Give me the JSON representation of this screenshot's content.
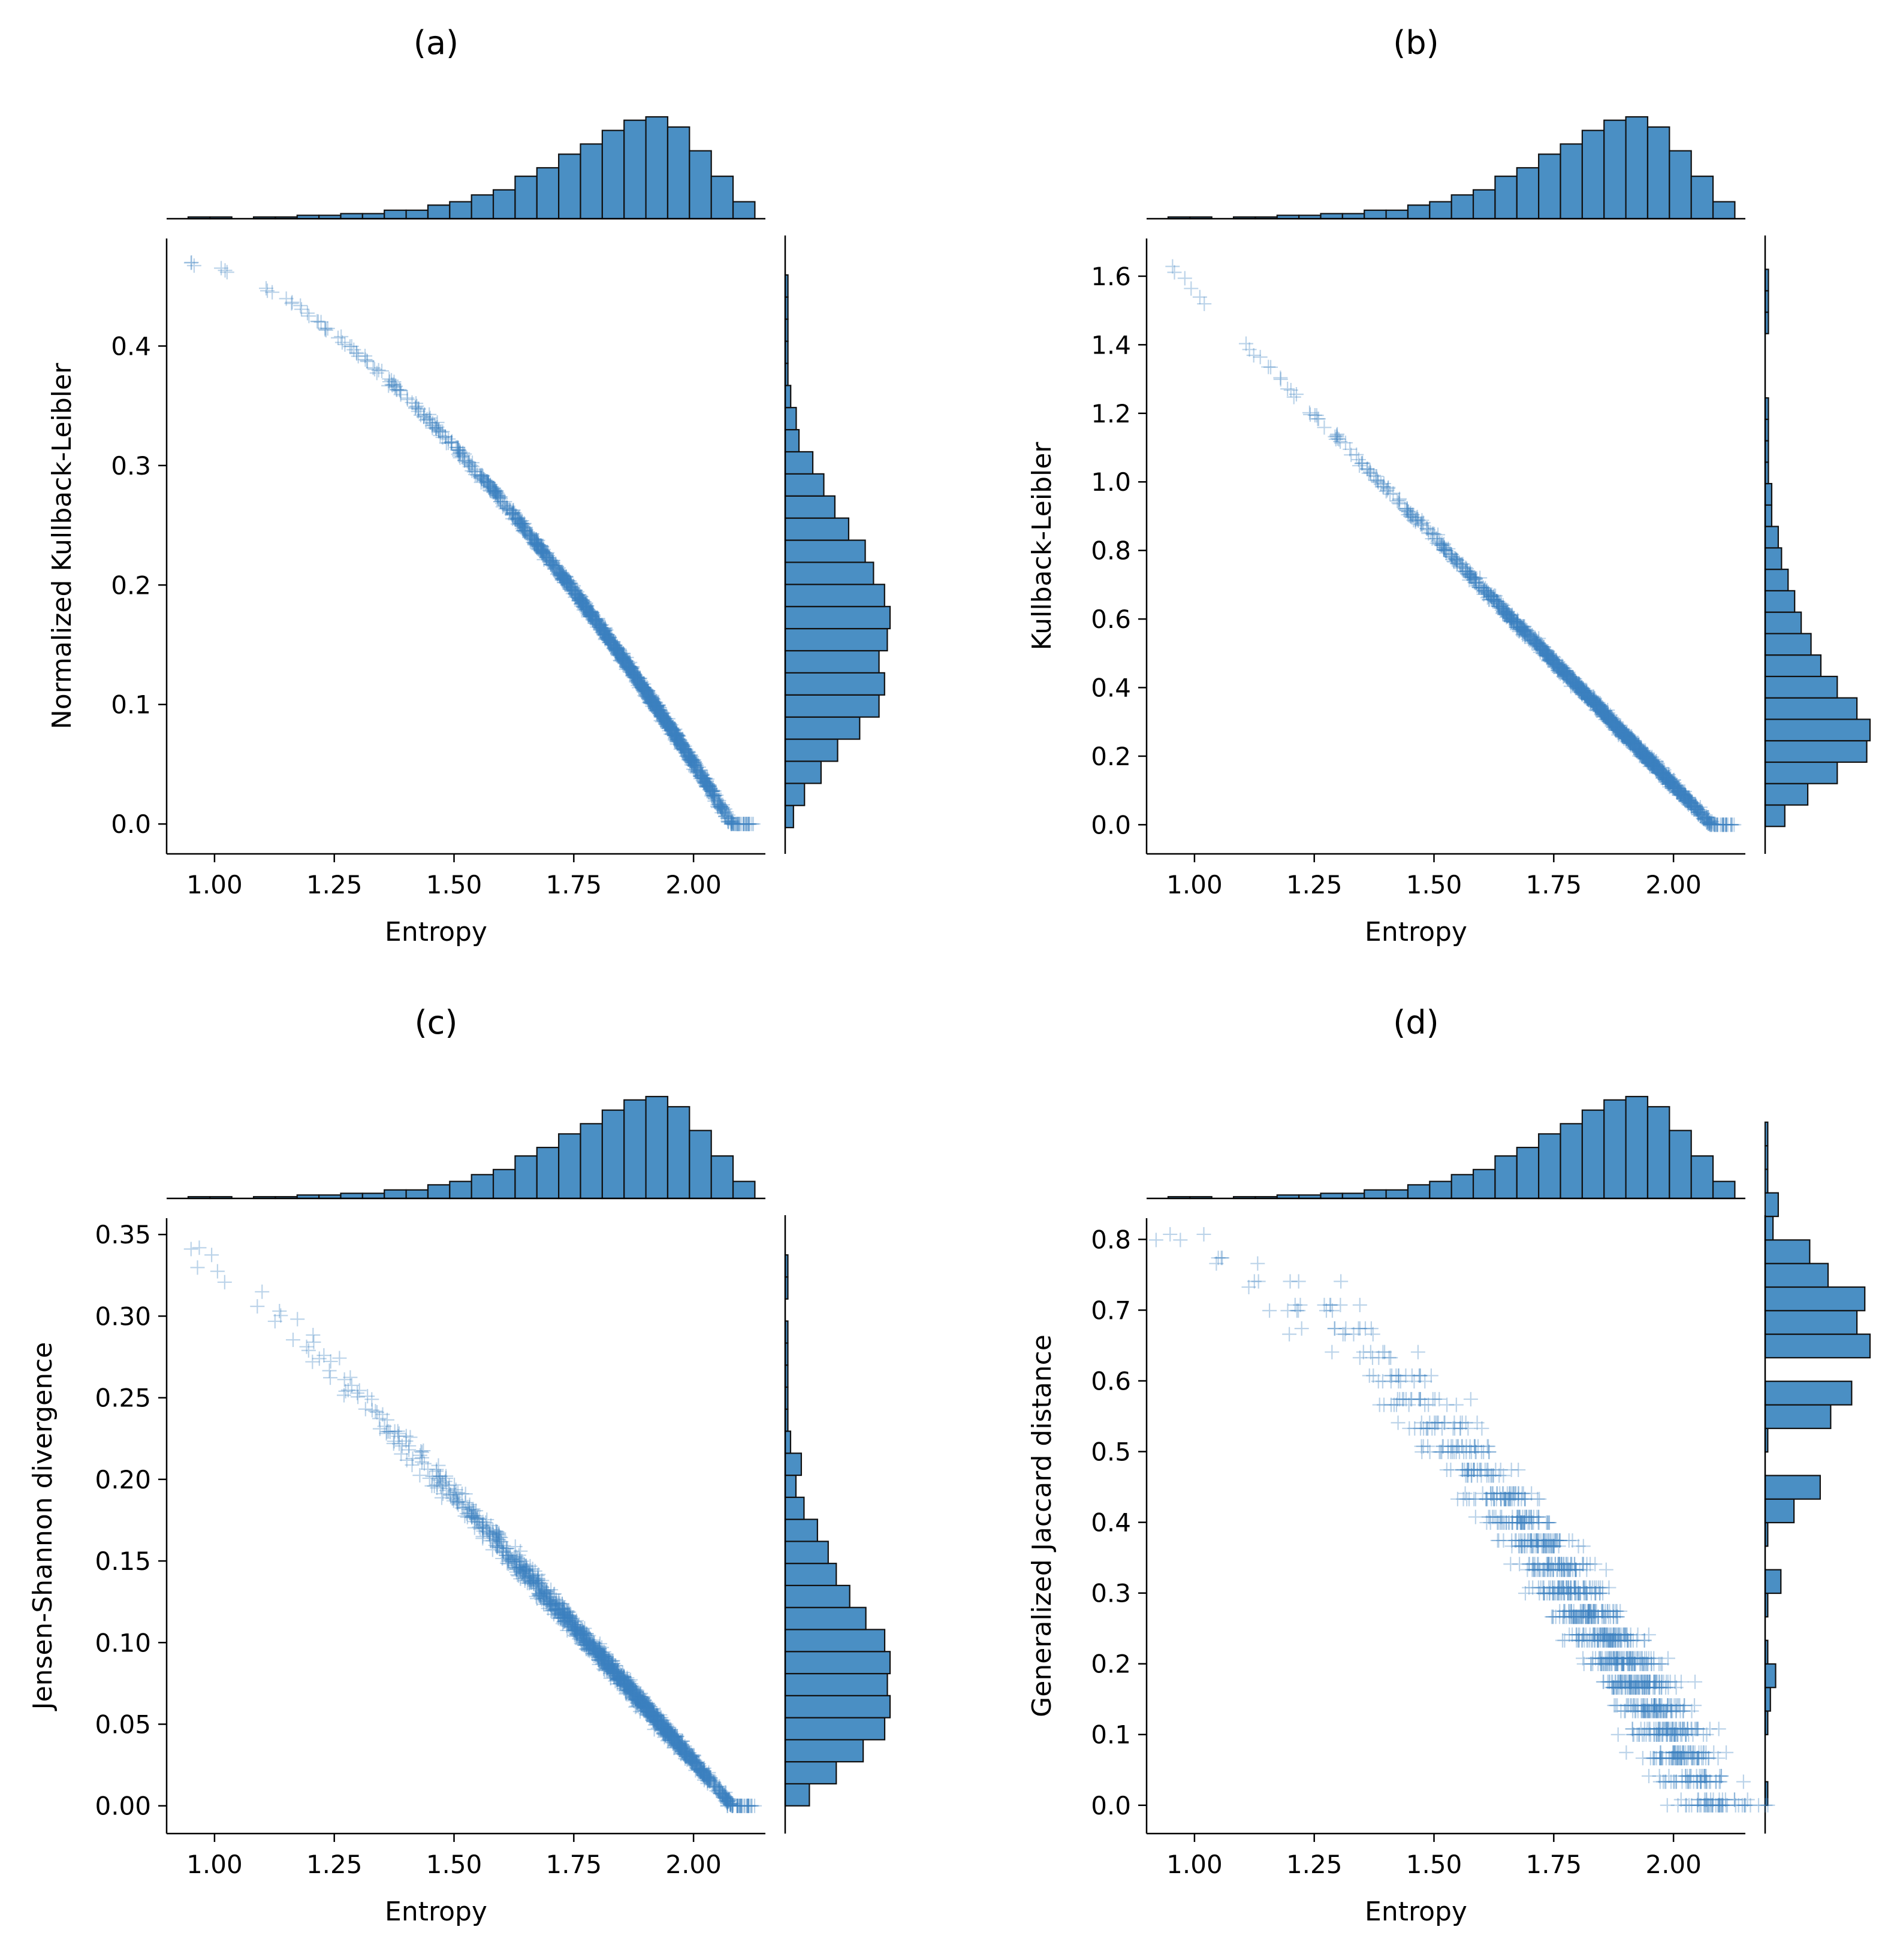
{
  "figure": {
    "description_type": "2x2 grid of joint plots (scatter with marginal histograms)"
  },
  "colors": {
    "bar_fill": "#4a8fc4",
    "bar_edge": "#111111",
    "point": "#3d82bf"
  },
  "chart_data": [
    {
      "type": "scatter",
      "title": "(a)",
      "xlabel": "Entropy",
      "ylabel": "Normalized Kullback-Leibler",
      "xlim": [
        0.9,
        2.15
      ],
      "ylim": [
        -0.025,
        0.49
      ],
      "xticks": [
        1.0,
        1.25,
        1.5,
        1.75,
        2.0
      ],
      "xtick_labels": [
        "1.00",
        "1.25",
        "1.50",
        "1.75",
        "2.00"
      ],
      "yticks": [
        0.0,
        0.1,
        0.2,
        0.3,
        0.4
      ],
      "ytick_labels": [
        "0.0",
        "0.1",
        "0.2",
        "0.3",
        "0.4"
      ],
      "curve": "concave",
      "y_at_min_entropy": 0.47,
      "y_at_max_entropy": 0.0,
      "marginal_x_hist": {
        "bin_edges_start": 0.945,
        "bin_width": 0.0455,
        "counts": [
          1,
          1,
          0,
          1,
          1,
          2,
          2,
          3,
          3,
          5,
          5,
          8,
          10,
          14,
          17,
          25,
          30,
          38,
          44,
          52,
          58,
          60,
          54,
          40,
          25,
          10
        ]
      },
      "marginal_y_hist": {
        "bin_edges_start": -0.003,
        "bin_width": 0.0185,
        "counts": [
          3,
          7,
          13,
          19,
          27,
          34,
          36,
          34,
          37,
          38,
          36,
          32,
          29,
          23,
          18,
          14,
          10,
          5,
          4,
          2,
          1,
          1,
          1,
          1,
          1
        ]
      }
    },
    {
      "type": "scatter",
      "title": "(b)",
      "xlabel": "Entropy",
      "ylabel": "Kullback-Leibler",
      "xlim": [
        0.9,
        2.15
      ],
      "ylim": [
        -0.085,
        1.71
      ],
      "xticks": [
        1.0,
        1.25,
        1.5,
        1.75,
        2.0
      ],
      "xtick_labels": [
        "1.00",
        "1.25",
        "1.50",
        "1.75",
        "2.00"
      ],
      "yticks": [
        0.0,
        0.2,
        0.4,
        0.6,
        0.8,
        1.0,
        1.2,
        1.4,
        1.6
      ],
      "ytick_labels": [
        "0.0",
        "0.2",
        "0.4",
        "0.6",
        "0.8",
        "1.0",
        "1.2",
        "1.4",
        "1.6"
      ],
      "curve": "linear",
      "y_at_min_entropy": 1.63,
      "y_at_max_entropy": 0.0,
      "marginal_x_hist": {
        "bin_edges_start": 0.945,
        "bin_width": 0.0455,
        "counts": [
          1,
          1,
          0,
          1,
          1,
          2,
          2,
          3,
          3,
          5,
          5,
          8,
          10,
          14,
          17,
          25,
          30,
          38,
          44,
          52,
          58,
          60,
          54,
          40,
          25,
          10
        ]
      },
      "marginal_y_hist": {
        "bin_edges_start": -0.005,
        "bin_width": 0.0625,
        "counts": [
          6,
          13,
          22,
          31,
          32,
          28,
          22,
          17,
          14,
          11,
          9,
          7,
          5,
          4,
          2,
          2,
          1,
          1,
          1,
          1,
          0,
          0,
          0,
          1,
          1,
          1
        ]
      }
    },
    {
      "type": "scatter",
      "title": "(c)",
      "xlabel": "Entropy",
      "ylabel": "Jensen-Shannon divergence",
      "xlim": [
        0.9,
        2.15
      ],
      "ylim": [
        -0.017,
        0.36
      ],
      "xticks": [
        1.0,
        1.25,
        1.5,
        1.75,
        2.0
      ],
      "xtick_labels": [
        "1.00",
        "1.25",
        "1.50",
        "1.75",
        "2.00"
      ],
      "yticks": [
        0.0,
        0.05,
        0.1,
        0.15,
        0.2,
        0.25,
        0.3,
        0.35
      ],
      "ytick_labels": [
        "0.00",
        "0.05",
        "0.10",
        "0.15",
        "0.20",
        "0.25",
        "0.30",
        "0.35"
      ],
      "curve": "near-linear",
      "y_at_min_entropy": 0.343,
      "y_at_max_entropy": 0.0,
      "marginal_x_hist": {
        "bin_edges_start": 0.945,
        "bin_width": 0.0455,
        "counts": [
          1,
          1,
          0,
          1,
          1,
          2,
          2,
          3,
          3,
          5,
          5,
          8,
          10,
          14,
          17,
          25,
          30,
          38,
          44,
          52,
          58,
          60,
          54,
          40,
          25,
          10
        ]
      },
      "marginal_y_hist": {
        "bin_edges_start": 0.0,
        "bin_width": 0.0135,
        "counts": [
          9,
          19,
          29,
          37,
          39,
          38,
          39,
          37,
          30,
          24,
          19,
          16,
          12,
          7,
          4,
          6,
          2,
          1,
          1,
          1,
          1,
          1,
          0,
          1,
          1
        ]
      }
    },
    {
      "type": "scatter",
      "title": "(d)",
      "xlabel": "Entropy",
      "ylabel": "Generalized Jaccard distance",
      "xlim": [
        0.9,
        2.15
      ],
      "ylim": [
        -0.04,
        0.83
      ],
      "xticks": [
        1.0,
        1.25,
        1.5,
        1.75,
        2.0
      ],
      "xtick_labels": [
        "1.00",
        "1.25",
        "1.50",
        "1.75",
        "2.00"
      ],
      "yticks": [
        0.0,
        0.1,
        0.2,
        0.3,
        0.4,
        0.5,
        0.6,
        0.7,
        0.8
      ],
      "ytick_labels": [
        "0.0",
        "0.1",
        "0.2",
        "0.3",
        "0.4",
        "0.5",
        "0.6",
        "0.7",
        "0.8"
      ],
      "curve": "discrete-bands",
      "y_at_min_entropy": 0.79,
      "y_at_max_entropy": 0.0,
      "marginal_x_hist": {
        "bin_edges_start": 0.945,
        "bin_width": 0.0455,
        "counts": [
          1,
          1,
          0,
          1,
          1,
          2,
          2,
          3,
          3,
          5,
          5,
          8,
          10,
          14,
          17,
          25,
          30,
          38,
          44,
          52,
          58,
          60,
          54,
          40,
          25,
          10
        ]
      },
      "marginal_y_hist": {
        "bin_edges_start": 0.0,
        "bin_width": 0.0333,
        "counts": [
          1,
          0,
          0,
          1,
          2,
          4,
          1,
          0,
          1,
          6,
          0,
          1,
          11,
          21,
          0,
          1,
          25,
          33,
          0,
          40,
          35,
          38,
          24,
          17,
          3,
          5,
          1,
          1,
          1
        ]
      }
    }
  ]
}
